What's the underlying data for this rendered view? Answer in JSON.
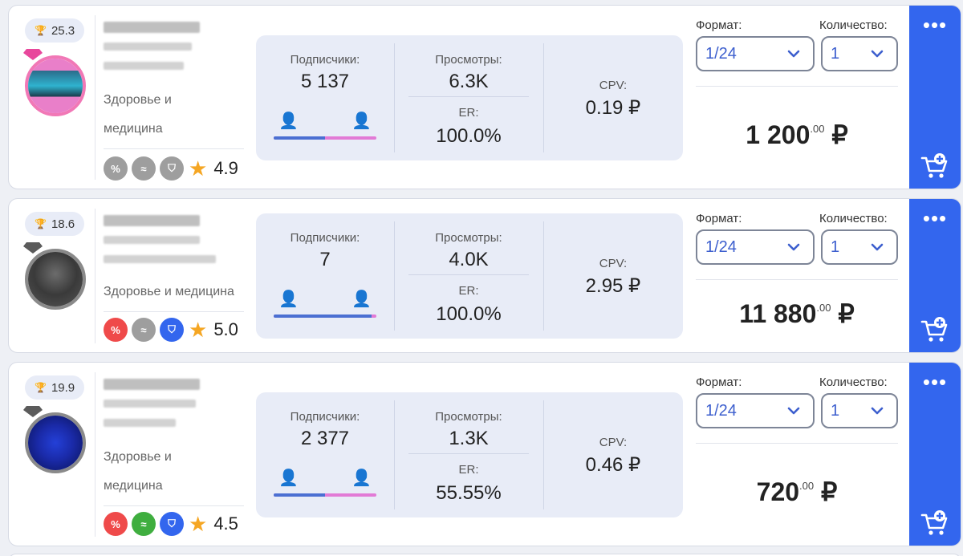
{
  "colors": {
    "accent": "#3366ee",
    "male": "#4b6fd2",
    "female": "#e27ad6",
    "star": "#f5a623"
  },
  "labels": {
    "subscribers": "Подписчики:",
    "views": "Просмотры:",
    "er": "ER:",
    "cpv": "CPV:",
    "format": "Формат:",
    "quantity": "Количество:",
    "more": "•••"
  },
  "cards": [
    {
      "rating": "25.3",
      "category_line1": "Здоровье и",
      "category_line2": "медицина",
      "score": "4.9",
      "badge_colors": [
        "#9e9e9e",
        "#9e9e9e",
        "#9e9e9e"
      ],
      "male_share": 0.5,
      "subscribers": "5 137",
      "views": "6.3K",
      "er": "100.0%",
      "cpv": "0.19 ₽",
      "format": "1/24",
      "quantity": "1",
      "price_main": "1 200",
      "price_cents": ".00",
      "price_currency": "₽"
    },
    {
      "rating": "18.6",
      "category_line1": "Здоровье и медицина",
      "category_line2": "",
      "score": "5.0",
      "badge_colors": [
        "#ef4a4a",
        "#9e9e9e",
        "#3366ee"
      ],
      "male_share": 0.95,
      "subscribers": "7",
      "views": "4.0K",
      "er": "100.0%",
      "cpv": "2.95 ₽",
      "format": "1/24",
      "quantity": "1",
      "price_main": "11 880",
      "price_cents": ".00",
      "price_currency": "₽"
    },
    {
      "rating": "19.9",
      "category_line1": "Здоровье и",
      "category_line2": "медицина",
      "score": "4.5",
      "badge_colors": [
        "#ef4a4a",
        "#3fae3f",
        "#3366ee"
      ],
      "male_share": 0.5,
      "subscribers": "2 377",
      "views": "1.3K",
      "er": "55.55%",
      "cpv": "0.46 ₽",
      "format": "1/24",
      "quantity": "1",
      "price_main": "720",
      "price_cents": ".00",
      "price_currency": "₽"
    }
  ]
}
